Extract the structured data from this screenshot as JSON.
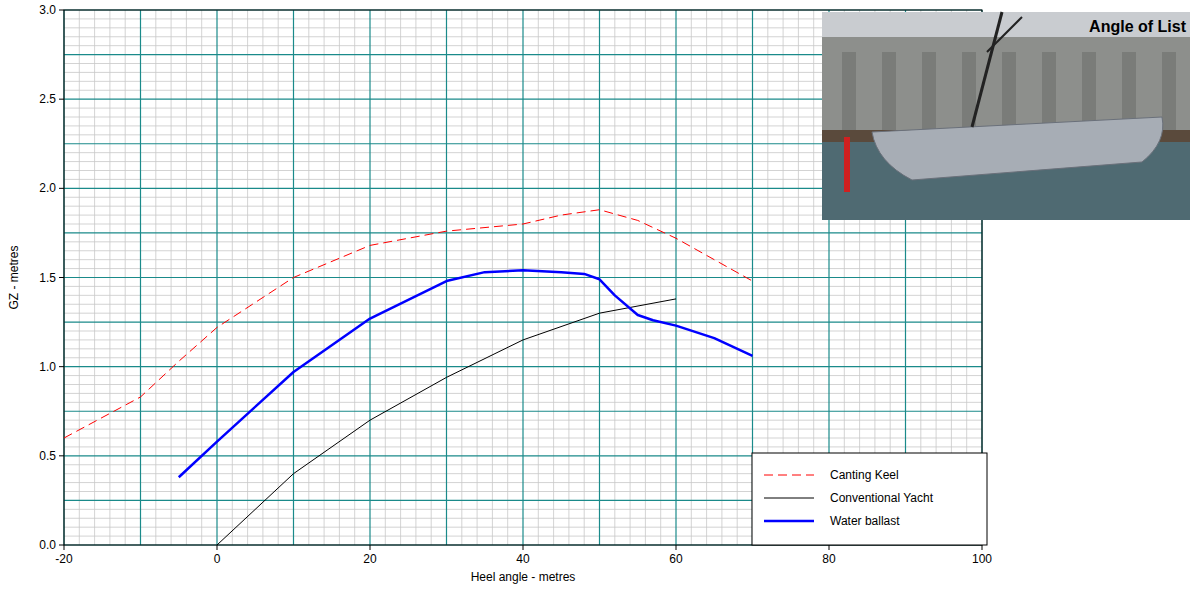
{
  "chart_data": {
    "type": "line",
    "x_label": "Heel angle - metres",
    "y_label": "GZ - metres",
    "annotation": "Angle of List",
    "xlim": [
      -20,
      100
    ],
    "xticks": [
      -20,
      0,
      20,
      40,
      60,
      80,
      100
    ],
    "ylim": [
      0,
      3.0
    ],
    "yticks": [
      {
        "value": 0,
        "label": "0.0"
      },
      {
        "value": 0.5,
        "label": "0.5"
      },
      {
        "value": 1.0,
        "label": "1.0"
      },
      {
        "value": 1.5,
        "label": "1.5"
      },
      {
        "value": 2.0,
        "label": "2.0"
      },
      {
        "value": 2.5,
        "label": "2.5"
      },
      {
        "value": 3.0,
        "label": "3.0"
      }
    ],
    "grid": true,
    "legend": "lower right",
    "series": [
      {
        "name": "Canting Keel",
        "color": "#ff0000",
        "line_style": "dashed",
        "x": [
          -20,
          -10,
          -5,
          0,
          10,
          20,
          30,
          40,
          45,
          50,
          55,
          60,
          70
        ],
        "values": [
          0.6,
          0.83,
          1.03,
          1.22,
          1.5,
          1.68,
          1.76,
          1.8,
          1.85,
          1.88,
          1.82,
          1.72,
          1.48
        ]
      },
      {
        "name": "Conventional Yacht",
        "color": "#000000",
        "line_style": "solid",
        "x": [
          0,
          10,
          20,
          30,
          40,
          50,
          60
        ],
        "values": [
          0,
          0.4,
          0.7,
          0.94,
          1.15,
          1.3,
          1.38
        ]
      },
      {
        "name": "Water ballast",
        "color": "#0000ff",
        "line_style": "solid",
        "x": [
          -5,
          0,
          10,
          20,
          30,
          35,
          40,
          45,
          48,
          50,
          52,
          55,
          57,
          60,
          65,
          70
        ],
        "values": [
          0.38,
          0.58,
          0.97,
          1.27,
          1.48,
          1.53,
          1.54,
          1.53,
          1.52,
          1.49,
          1.4,
          1.29,
          1.26,
          1.23,
          1.16,
          1.06
        ]
      }
    ]
  }
}
